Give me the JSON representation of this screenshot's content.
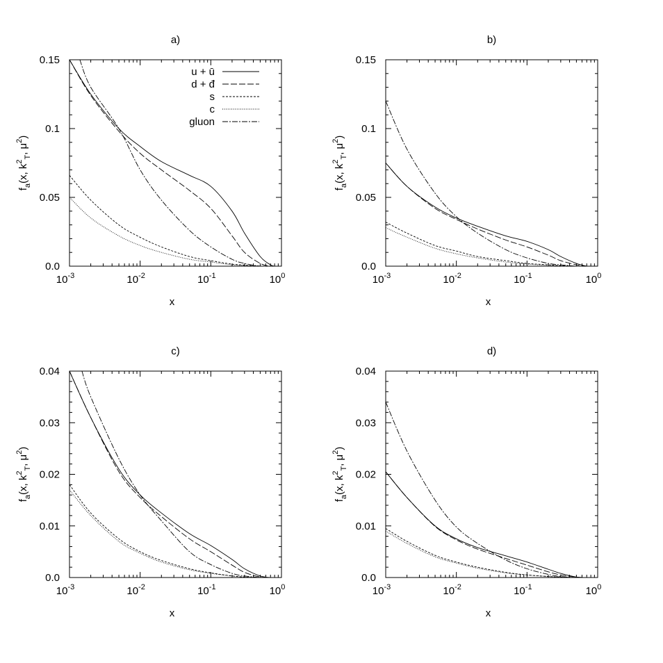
{
  "chart_data": [
    {
      "type": "line",
      "title": "a)",
      "xlabel": "x",
      "ylabel": "f_a(x, k_T^2, μ^2)",
      "xscale": "log",
      "xlim": [
        0.001,
        1
      ],
      "ylim": [
        0,
        0.15
      ],
      "xticks": [
        0.001,
        0.01,
        0.1,
        1
      ],
      "xtick_labels": [
        [
          "10",
          "-3"
        ],
        [
          "10",
          "-2"
        ],
        [
          "10",
          "-1"
        ],
        [
          "10",
          "0"
        ]
      ],
      "yticks": [
        0,
        0.05,
        0.1,
        0.15
      ],
      "ytick_labels": [
        "0.0",
        "0.05",
        "0.1",
        "0.15"
      ],
      "legend": "top-right",
      "series": [
        {
          "name": "u + ū",
          "x": [
            0.001,
            0.002,
            0.005,
            0.01,
            0.02,
            0.05,
            0.1,
            0.2,
            0.3,
            0.5,
            0.7,
            0.8
          ],
          "values": [
            0.15,
            0.125,
            0.1,
            0.087,
            0.076,
            0.066,
            0.058,
            0.04,
            0.024,
            0.007,
            0.001,
            0.0
          ]
        },
        {
          "name": "d + đ",
          "x": [
            0.001,
            0.002,
            0.005,
            0.01,
            0.02,
            0.05,
            0.1,
            0.2,
            0.3,
            0.5,
            0.7,
            0.8
          ],
          "values": [
            0.15,
            0.124,
            0.098,
            0.082,
            0.07,
            0.055,
            0.042,
            0.022,
            0.01,
            0.002,
            0.0,
            0.0
          ]
        },
        {
          "name": "s",
          "x": [
            0.001,
            0.002,
            0.005,
            0.01,
            0.02,
            0.05,
            0.1,
            0.2,
            0.3,
            0.5,
            0.7
          ],
          "values": [
            0.066,
            0.048,
            0.03,
            0.021,
            0.014,
            0.007,
            0.004,
            0.0015,
            0.0008,
            0.0,
            0.0
          ]
        },
        {
          "name": "c",
          "x": [
            0.001,
            0.002,
            0.005,
            0.01,
            0.02,
            0.05,
            0.1,
            0.2,
            0.3,
            0.5,
            0.7
          ],
          "values": [
            0.05,
            0.035,
            0.022,
            0.015,
            0.01,
            0.005,
            0.003,
            0.001,
            0.0005,
            0.0,
            0.0
          ]
        },
        {
          "name": "gluon",
          "x": [
            0.0014,
            0.002,
            0.005,
            0.01,
            0.02,
            0.05,
            0.1,
            0.2,
            0.3,
            0.5,
            0.7
          ],
          "values": [
            0.15,
            0.13,
            0.1,
            0.07,
            0.048,
            0.026,
            0.014,
            0.005,
            0.002,
            0.0,
            0.0
          ]
        }
      ]
    },
    {
      "type": "line",
      "title": "b)",
      "xlabel": "x",
      "ylabel": "f_a(x, k_T^2, μ^2)",
      "xscale": "log",
      "xlim": [
        0.001,
        1
      ],
      "ylim": [
        0,
        0.15
      ],
      "xticks": [
        0.001,
        0.01,
        0.1,
        1
      ],
      "xtick_labels": [
        [
          "10",
          "-3"
        ],
        [
          "10",
          "-2"
        ],
        [
          "10",
          "-1"
        ],
        [
          "10",
          "0"
        ]
      ],
      "yticks": [
        0,
        0.05,
        0.1,
        0.15
      ],
      "ytick_labels": [
        "0.0",
        "0.05",
        "0.1",
        "0.15"
      ],
      "series": [
        {
          "name": "u + ū",
          "x": [
            0.001,
            0.002,
            0.005,
            0.01,
            0.02,
            0.05,
            0.1,
            0.2,
            0.3,
            0.5,
            0.7
          ],
          "values": [
            0.075,
            0.058,
            0.043,
            0.035,
            0.029,
            0.022,
            0.018,
            0.012,
            0.007,
            0.002,
            0.0
          ]
        },
        {
          "name": "d + đ",
          "x": [
            0.001,
            0.002,
            0.005,
            0.01,
            0.02,
            0.05,
            0.1,
            0.2,
            0.3,
            0.5,
            0.7
          ],
          "values": [
            0.075,
            0.058,
            0.042,
            0.034,
            0.027,
            0.019,
            0.014,
            0.008,
            0.004,
            0.001,
            0.0
          ]
        },
        {
          "name": "s",
          "x": [
            0.001,
            0.002,
            0.005,
            0.01,
            0.02,
            0.05,
            0.1,
            0.2,
            0.3,
            0.5,
            0.7
          ],
          "values": [
            0.032,
            0.024,
            0.015,
            0.011,
            0.007,
            0.004,
            0.002,
            0.001,
            0.0004,
            0.0,
            0.0
          ]
        },
        {
          "name": "c",
          "x": [
            0.001,
            0.002,
            0.005,
            0.01,
            0.02,
            0.05,
            0.1,
            0.2,
            0.3,
            0.5,
            0.7
          ],
          "values": [
            0.028,
            0.021,
            0.013,
            0.009,
            0.006,
            0.003,
            0.0015,
            0.0006,
            0.0003,
            0.0,
            0.0
          ]
        },
        {
          "name": "gluon",
          "x": [
            0.001,
            0.002,
            0.005,
            0.01,
            0.02,
            0.05,
            0.1,
            0.2,
            0.3,
            0.5,
            0.7
          ],
          "values": [
            0.12,
            0.085,
            0.053,
            0.036,
            0.024,
            0.012,
            0.006,
            0.002,
            0.001,
            0.0,
            0.0
          ]
        }
      ]
    },
    {
      "type": "line",
      "title": "c)",
      "xlabel": "x",
      "ylabel": "f_a(x, k_T^2, μ^2)",
      "xscale": "log",
      "xlim": [
        0.001,
        1
      ],
      "ylim": [
        0,
        0.04
      ],
      "xticks": [
        0.001,
        0.01,
        0.1,
        1
      ],
      "xtick_labels": [
        [
          "10",
          "-3"
        ],
        [
          "10",
          "-2"
        ],
        [
          "10",
          "-1"
        ],
        [
          "10",
          "0"
        ]
      ],
      "yticks": [
        0,
        0.01,
        0.02,
        0.03,
        0.04
      ],
      "ytick_labels": [
        "0.0",
        "0.01",
        "0.02",
        "0.03",
        "0.04"
      ],
      "series": [
        {
          "name": "u + ū",
          "x": [
            0.001,
            0.002,
            0.005,
            0.01,
            0.02,
            0.05,
            0.1,
            0.2,
            0.3,
            0.5,
            0.7
          ],
          "values": [
            0.04,
            0.031,
            0.021,
            0.016,
            0.0125,
            0.0085,
            0.0062,
            0.0035,
            0.0017,
            0.0003,
            0.0
          ]
        },
        {
          "name": "d + đ",
          "x": [
            0.001,
            0.002,
            0.005,
            0.01,
            0.02,
            0.05,
            0.1,
            0.2,
            0.3,
            0.5,
            0.7
          ],
          "values": [
            0.04,
            0.031,
            0.0205,
            0.0155,
            0.0118,
            0.0075,
            0.005,
            0.0024,
            0.001,
            0.0001,
            0.0
          ]
        },
        {
          "name": "s",
          "x": [
            0.001,
            0.002,
            0.005,
            0.01,
            0.02,
            0.05,
            0.1,
            0.2,
            0.3,
            0.5,
            0.7
          ],
          "values": [
            0.018,
            0.0125,
            0.0075,
            0.005,
            0.0033,
            0.0017,
            0.0009,
            0.0003,
            0.0001,
            0.0,
            0.0
          ]
        },
        {
          "name": "c",
          "x": [
            0.001,
            0.002,
            0.005,
            0.01,
            0.02,
            0.05,
            0.1,
            0.2,
            0.3,
            0.5,
            0.7
          ],
          "values": [
            0.017,
            0.012,
            0.007,
            0.0047,
            0.003,
            0.0015,
            0.0008,
            0.0003,
            0.0001,
            0.0,
            0.0
          ]
        },
        {
          "name": "gluon",
          "x": [
            0.0015,
            0.002,
            0.005,
            0.01,
            0.02,
            0.05,
            0.1,
            0.2,
            0.3,
            0.5,
            0.7
          ],
          "values": [
            0.04,
            0.035,
            0.023,
            0.016,
            0.011,
            0.005,
            0.0025,
            0.0008,
            0.0003,
            0.0,
            0.0
          ]
        }
      ]
    },
    {
      "type": "line",
      "title": "d)",
      "xlabel": "x",
      "ylabel": "f_a(x, k_T^2, μ^2)",
      "xscale": "log",
      "xlim": [
        0.001,
        1
      ],
      "ylim": [
        0,
        0.04
      ],
      "xticks": [
        0.001,
        0.01,
        0.1,
        1
      ],
      "xtick_labels": [
        [
          "10",
          "-3"
        ],
        [
          "10",
          "-2"
        ],
        [
          "10",
          "-1"
        ],
        [
          "10",
          "0"
        ]
      ],
      "yticks": [
        0,
        0.01,
        0.02,
        0.03,
        0.04
      ],
      "ytick_labels": [
        "0.0",
        "0.01",
        "0.02",
        "0.03",
        "0.04"
      ],
      "series": [
        {
          "name": "u + ū",
          "x": [
            0.001,
            0.002,
            0.005,
            0.01,
            0.02,
            0.05,
            0.1,
            0.2,
            0.3,
            0.5,
            0.7
          ],
          "values": [
            0.0205,
            0.0155,
            0.01,
            0.0075,
            0.0058,
            0.0042,
            0.003,
            0.0016,
            0.0008,
            0.0001,
            0.0
          ]
        },
        {
          "name": "d + đ",
          "x": [
            0.001,
            0.002,
            0.005,
            0.01,
            0.02,
            0.05,
            0.1,
            0.2,
            0.3,
            0.5,
            0.7
          ],
          "values": [
            0.0205,
            0.0155,
            0.0099,
            0.0073,
            0.0055,
            0.0037,
            0.0024,
            0.0011,
            0.0005,
            0.0001,
            0.0
          ]
        },
        {
          "name": "s",
          "x": [
            0.001,
            0.002,
            0.005,
            0.01,
            0.02,
            0.05,
            0.1,
            0.2,
            0.3,
            0.5,
            0.7
          ],
          "values": [
            0.0095,
            0.007,
            0.0043,
            0.003,
            0.002,
            0.001,
            0.0005,
            0.0002,
            0.0001,
            0.0,
            0.0
          ]
        },
        {
          "name": "c",
          "x": [
            0.001,
            0.002,
            0.005,
            0.01,
            0.02,
            0.05,
            0.1,
            0.2,
            0.3,
            0.5,
            0.7
          ],
          "values": [
            0.009,
            0.0066,
            0.004,
            0.0028,
            0.0018,
            0.0009,
            0.0005,
            0.0002,
            0.0001,
            0.0,
            0.0
          ]
        },
        {
          "name": "gluon",
          "x": [
            0.001,
            0.002,
            0.005,
            0.01,
            0.02,
            0.05,
            0.1,
            0.2,
            0.3,
            0.5,
            0.7
          ],
          "values": [
            0.034,
            0.0245,
            0.015,
            0.0098,
            0.0066,
            0.0034,
            0.0017,
            0.0006,
            0.0002,
            0.0,
            0.0
          ]
        }
      ]
    }
  ]
}
